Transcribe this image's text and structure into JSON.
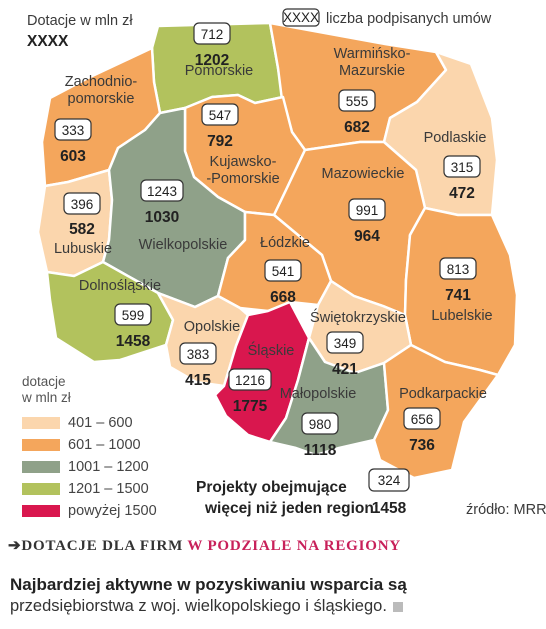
{
  "header": {
    "unit_label": "Dotacje w mln zł",
    "unit_placeholder": "XXXX",
    "count_badge": "XXXX",
    "count_label": "liczba podpisanych umów"
  },
  "colors": {
    "401-600": "#fbd6ad",
    "601-1000": "#f4a65c",
    "1001-1200": "#8fa189",
    "1201-1500": "#b2c25d",
    "above-1500": "#d9174e"
  },
  "regions": [
    {
      "id": "pomorskie",
      "name": "Pomorskie",
      "contracts": "712",
      "subsidy": "1202",
      "category": "1201-1500"
    },
    {
      "id": "warminsko-mazurskie",
      "name": "Warmińsko-\nMazurskie",
      "contracts": "555",
      "subsidy": "682",
      "category": "601-1000"
    },
    {
      "id": "zachodniopomorskie",
      "name": "Zachodnio-\npomorskie",
      "contracts": "333",
      "subsidy": "603",
      "category": "601-1000"
    },
    {
      "id": "kujawsko-pomorskie",
      "name": "Kujawsko-\n-Pomorskie",
      "contracts": "547",
      "subsidy": "792",
      "category": "601-1000"
    },
    {
      "id": "podlaskie",
      "name": "Podlaskie",
      "contracts": "315",
      "subsidy": "472",
      "category": "401-600"
    },
    {
      "id": "mazowieckie",
      "name": "Mazowieckie",
      "contracts": "991",
      "subsidy": "964",
      "category": "601-1000"
    },
    {
      "id": "lubuskie",
      "name": "Lubuskie",
      "contracts": "396",
      "subsidy": "582",
      "category": "401-600"
    },
    {
      "id": "wielkopolskie",
      "name": "Wielkopolskie",
      "contracts": "1243",
      "subsidy": "1030",
      "category": "1001-1200"
    },
    {
      "id": "lodzkie",
      "name": "Łódzkie",
      "contracts": "541",
      "subsidy": "668",
      "category": "601-1000"
    },
    {
      "id": "lubelskie",
      "name": "Lubelskie",
      "contracts": "813",
      "subsidy": "741",
      "category": "601-1000"
    },
    {
      "id": "dolnoslaskie",
      "name": "Dolnośląskie",
      "contracts": "599",
      "subsidy": "1458",
      "category": "1201-1500"
    },
    {
      "id": "swietokrzyskie",
      "name": "Świętokrzyskie",
      "contracts": "349",
      "subsidy": "421",
      "category": "401-600"
    },
    {
      "id": "opolskie",
      "name": "Opolskie",
      "contracts": "383",
      "subsidy": "415",
      "category": "401-600"
    },
    {
      "id": "slaskie",
      "name": "Śląskie",
      "contracts": "1216",
      "subsidy": "1775",
      "category": "above-1500"
    },
    {
      "id": "malopolskie",
      "name": "Małopolskie",
      "contracts": "980",
      "subsidy": "1118",
      "category": "1001-1200"
    },
    {
      "id": "podkarpackie",
      "name": "Podkarpackie",
      "contracts": "656",
      "subsidy": "736",
      "category": "601-1000"
    }
  ],
  "legend": {
    "title_line1": "dotacje",
    "title_line2": "w mln zł",
    "items": [
      {
        "label": "401 – 600",
        "category": "401-600"
      },
      {
        "label": "601 – 1000",
        "category": "601-1000"
      },
      {
        "label": "1001 – 1200",
        "category": "1001-1200"
      },
      {
        "label": "1201 – 1500",
        "category": "1201-1500"
      },
      {
        "label": "powyżej 1500",
        "category": "above-1500"
      }
    ]
  },
  "multi_region": {
    "line1": "Projekty obejmujące",
    "line2": "więcej niż jeden region:",
    "contracts": "324",
    "subsidy": "1458"
  },
  "source": "źródło: MRR",
  "caption": {
    "part1": "DOTACJE DLA FIRM",
    "part2": "W PODZIALE NA REGIONY"
  },
  "note": {
    "bold": "Najbardziej aktywne w pozyskiwaniu wsparcia są",
    "regular": "przedsiębiorstwa z woj. wielkopolskiego i śląskiego."
  }
}
